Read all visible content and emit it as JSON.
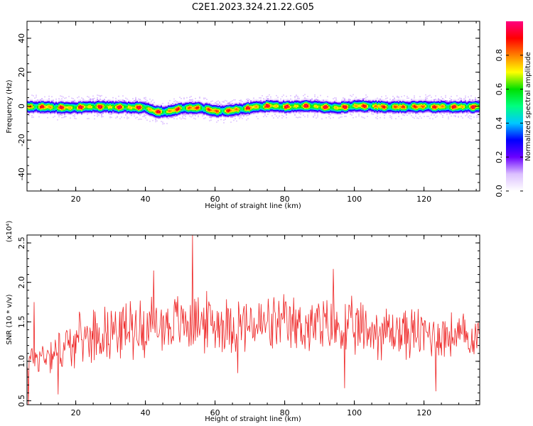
{
  "title": "C2E1.2023.324.21.22.G05",
  "chart_data": [
    {
      "type": "heatmap",
      "xlabel": "Height of straight line (km)",
      "ylabel": "Frequency (Hz)",
      "xlim": [
        6,
        136
      ],
      "ylim": [
        -50,
        50
      ],
      "x_ticks": [
        20,
        40,
        60,
        80,
        100,
        120
      ],
      "y_ticks": [
        -40,
        -20,
        0,
        20,
        40
      ],
      "colorbar": {
        "label": "Normalized spectral amplitude",
        "range": [
          0.0,
          1.0
        ],
        "ticks": [
          0.0,
          0.2,
          0.4,
          0.6,
          0.8
        ],
        "colors": [
          "#ffffff",
          "#dcc0ff",
          "#6a00ff",
          "#0000ff",
          "#00c8ff",
          "#00ff80",
          "#00e000",
          "#ffff00",
          "#ff8000",
          "#ff0000",
          "#ff0080"
        ]
      },
      "ridge": {
        "x": [
          6,
          10,
          15,
          20,
          25,
          30,
          35,
          40,
          43,
          45,
          50,
          55,
          60,
          65,
          70,
          75,
          80,
          85,
          90,
          95,
          100,
          105,
          110,
          115,
          120,
          125,
          130,
          136
        ],
        "frequency": [
          0,
          0,
          -0.5,
          -0.5,
          0,
          0,
          -0.3,
          -0.5,
          -3,
          -3,
          -1,
          -0.5,
          -2.5,
          -2,
          -0.5,
          0.5,
          0,
          0.5,
          0,
          -0.5,
          0.5,
          0.3,
          0,
          0,
          0.2,
          0,
          0,
          0
        ],
        "half_width_hz": 2.5
      }
    },
    {
      "type": "line",
      "xlabel": "Height of straight line (km)",
      "ylabel": "SNR (10 * v/v)",
      "y_multiplier": "(x10⁴)",
      "xlim": [
        6,
        136
      ],
      "ylim": [
        0.45,
        2.6
      ],
      "x_ticks": [
        20,
        40,
        60,
        80,
        100,
        120
      ],
      "y_ticks": [
        0.5,
        1.0,
        1.5,
        2.0,
        2.5
      ],
      "line_color": "#ee2222",
      "envelope": {
        "x": [
          6,
          15,
          25,
          40,
          55,
          70,
          85,
          100,
          120,
          136
        ],
        "center": [
          1.0,
          1.15,
          1.35,
          1.45,
          1.5,
          1.45,
          1.45,
          1.4,
          1.35,
          1.3
        ],
        "spread": [
          0.2,
          0.3,
          0.35,
          0.4,
          0.4,
          0.4,
          0.4,
          0.4,
          0.35,
          0.3
        ]
      },
      "peaks": [
        {
          "x": 6.4,
          "y": 0.45
        },
        {
          "x": 15,
          "y": 0.58
        },
        {
          "x": 42.3,
          "y": 2.15
        },
        {
          "x": 53.6,
          "y": 2.6
        },
        {
          "x": 94,
          "y": 2.17
        },
        {
          "x": 97.2,
          "y": 0.66
        },
        {
          "x": 123.5,
          "y": 0.62
        },
        {
          "x": 66.5,
          "y": 0.85
        },
        {
          "x": 8,
          "y": 1.75
        }
      ]
    }
  ]
}
